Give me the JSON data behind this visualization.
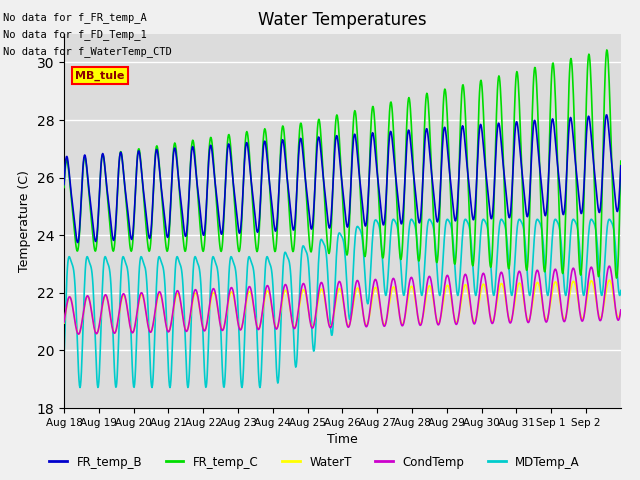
{
  "title": "Water Temperatures",
  "xlabel": "Time",
  "ylabel": "Temperature (C)",
  "ylim": [
    18,
    31
  ],
  "yticks": [
    18,
    20,
    22,
    24,
    26,
    28,
    30
  ],
  "background_color": "#dcdcdc",
  "fig_background": "#f0f0f0",
  "annotations_upper_left": [
    "No data for f_FR_temp_A",
    "No data for f_FD_Temp_1",
    "No data for f_WaterTemp_CTD"
  ],
  "mb_tule_label": "MB_tule",
  "series": {
    "FR_temp_B": {
      "color": "#0000cc",
      "lw": 1.2
    },
    "FR_temp_C": {
      "color": "#00dd00",
      "lw": 1.2
    },
    "WaterT": {
      "color": "#ffff00",
      "lw": 1.2
    },
    "CondTemp": {
      "color": "#cc00cc",
      "lw": 1.2
    },
    "MDTemp_A": {
      "color": "#00cccc",
      "lw": 1.2
    }
  },
  "xtick_labels": [
    "Aug 18",
    "Aug 19",
    "Aug 20",
    "Aug 21",
    "Aug 22",
    "Aug 23",
    "Aug 24",
    "Aug 25",
    "Aug 26",
    "Aug 27",
    "Aug 28",
    "Aug 29",
    "Aug 30",
    "Aug 31",
    "Sep 1",
    "Sep 2"
  ],
  "n_points": 1152,
  "tide_period": 0.517
}
